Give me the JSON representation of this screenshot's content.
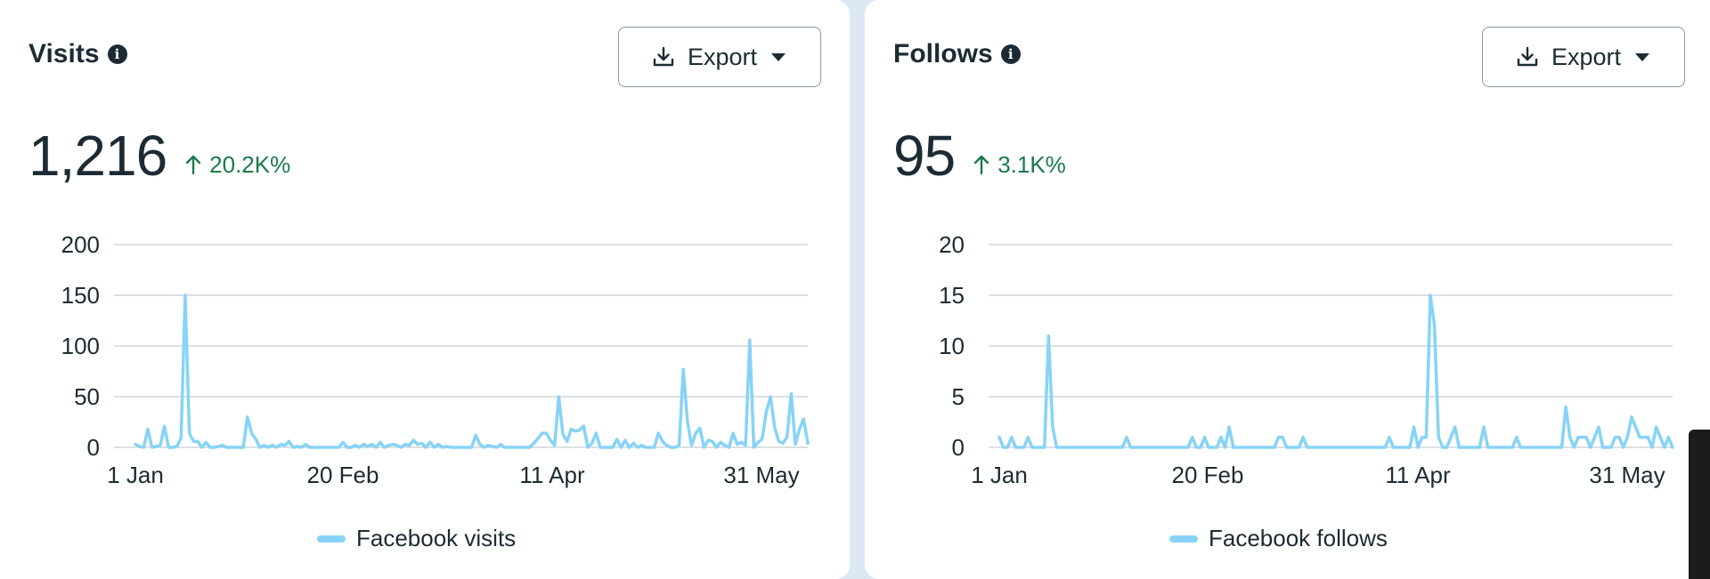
{
  "cards": [
    {
      "id": "visits",
      "title": "Visits",
      "export_label": "Export",
      "total": "1,216",
      "change": "20.2K%",
      "legend": "Facebook visits"
    },
    {
      "id": "follows",
      "title": "Follows",
      "export_label": "Export",
      "total": "95",
      "change": "3.1K%",
      "legend": "Facebook follows"
    }
  ],
  "colors": {
    "line": "#87d3f7",
    "grid": "#cfd5da",
    "text": "#1c2b33",
    "positive": "#1b7a4a"
  },
  "chart_data": [
    {
      "type": "line",
      "title": "",
      "xlabel": "",
      "ylabel": "",
      "ylim": [
        0,
        200
      ],
      "yticks": [
        "0",
        "50",
        "100",
        "150",
        "200"
      ],
      "xticks": [
        "1 Jan",
        "20 Feb",
        "11 Apr",
        "31 May"
      ],
      "grid": true,
      "legend_position": "bottom",
      "series": [
        {
          "name": "Facebook visits",
          "x_start": "1 Jan",
          "values": [
            3,
            1,
            0,
            18,
            0,
            1,
            2,
            21,
            0,
            0,
            1,
            9,
            150,
            14,
            6,
            6,
            0,
            5,
            0,
            0,
            1,
            2,
            0,
            0,
            0,
            0,
            0,
            30,
            14,
            8,
            0,
            2,
            0,
            2,
            0,
            3,
            2,
            6,
            0,
            1,
            0,
            3,
            0,
            0,
            0,
            0,
            0,
            0,
            0,
            0,
            5,
            0,
            0,
            2,
            0,
            3,
            1,
            3,
            0,
            5,
            0,
            2,
            3,
            2,
            0,
            3,
            2,
            7,
            3,
            4,
            0,
            5,
            0,
            3,
            0,
            1,
            0,
            0,
            0,
            0,
            0,
            0,
            12,
            3,
            0,
            2,
            1,
            0,
            3,
            0,
            0,
            0,
            0,
            0,
            0,
            0,
            4,
            9,
            14,
            14,
            7,
            2,
            50,
            13,
            6,
            18,
            16,
            17,
            21,
            0,
            4,
            14,
            0,
            0,
            0,
            0,
            8,
            0,
            7,
            0,
            4,
            0,
            2,
            0,
            0,
            0,
            14,
            6,
            2,
            0,
            0,
            2,
            77,
            26,
            2,
            14,
            19,
            0,
            7,
            6,
            0,
            5,
            2,
            0,
            14,
            3,
            5,
            2,
            106,
            0,
            5,
            8,
            35,
            50,
            20,
            6,
            4,
            10,
            53,
            3,
            18,
            28,
            4
          ],
          "x_end": "5 Jun"
        }
      ]
    },
    {
      "type": "line",
      "title": "",
      "xlabel": "",
      "ylabel": "",
      "ylim": [
        0,
        20
      ],
      "yticks": [
        "0",
        "5",
        "10",
        "15",
        "20"
      ],
      "xticks": [
        "1 Jan",
        "20 Feb",
        "11 Apr",
        "31 May"
      ],
      "grid": true,
      "legend_position": "bottom",
      "series": [
        {
          "name": "Facebook follows",
          "x_start": "1 Jan",
          "values": [
            1,
            0,
            0,
            1,
            0,
            0,
            0,
            1,
            0,
            0,
            0,
            0,
            11,
            2,
            0,
            0,
            0,
            0,
            0,
            0,
            0,
            0,
            0,
            0,
            0,
            0,
            0,
            0,
            0,
            0,
            0,
            1,
            0,
            0,
            0,
            0,
            0,
            0,
            0,
            0,
            0,
            0,
            0,
            0,
            0,
            0,
            0,
            1,
            0,
            0,
            1,
            0,
            0,
            0,
            1,
            0,
            2,
            0,
            0,
            0,
            0,
            0,
            0,
            0,
            0,
            0,
            0,
            0,
            1,
            1,
            0,
            0,
            0,
            0,
            1,
            0,
            0,
            0,
            0,
            0,
            0,
            0,
            0,
            0,
            0,
            0,
            0,
            0,
            0,
            0,
            0,
            0,
            0,
            0,
            0,
            1,
            0,
            0,
            0,
            0,
            0,
            2,
            0,
            1,
            1,
            15,
            12,
            1,
            0,
            0,
            1,
            2,
            0,
            0,
            0,
            0,
            0,
            0,
            2,
            0,
            0,
            0,
            0,
            0,
            0,
            0,
            1,
            0,
            0,
            0,
            0,
            0,
            0,
            0,
            0,
            0,
            0,
            0,
            4,
            1,
            0,
            1,
            1,
            1,
            0,
            1,
            2,
            0,
            0,
            0,
            1,
            1,
            0,
            1,
            3,
            2,
            1,
            1,
            1,
            0,
            2,
            1,
            0,
            1,
            0
          ],
          "x_end": "5 Jun"
        }
      ]
    }
  ]
}
